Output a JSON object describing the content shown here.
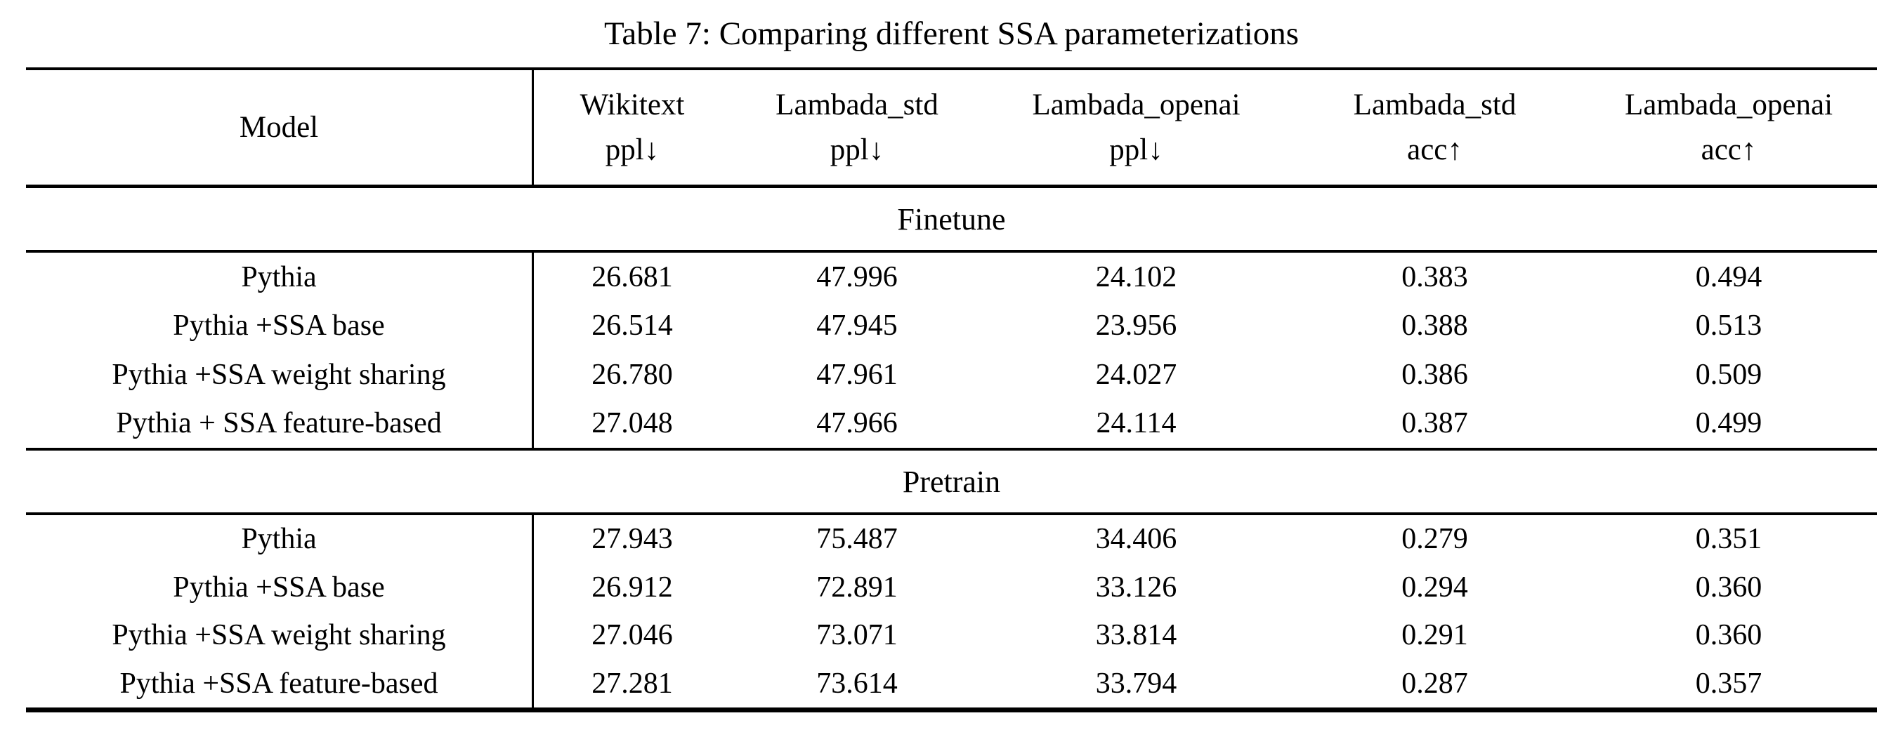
{
  "caption": "Table 7: Comparing different SSA parameterizations",
  "header": {
    "model": "Model",
    "columns": [
      {
        "line1": "Wikitext",
        "line2": "ppl↓"
      },
      {
        "line1": "Lambada_std",
        "line2": "ppl↓"
      },
      {
        "line1": "Lambada_openai",
        "line2": "ppl↓"
      },
      {
        "line1": "Lambada_std",
        "line2": "acc↑"
      },
      {
        "line1": "Lambada_openai",
        "line2": "acc↑"
      }
    ]
  },
  "sections": [
    {
      "label": "Finetune",
      "rows": [
        {
          "model": "Pythia",
          "values": [
            "26.681",
            "47.996",
            "24.102",
            "0.383",
            "0.494"
          ]
        },
        {
          "model": "Pythia +SSA base",
          "values": [
            "26.514",
            "47.945",
            "23.956",
            "0.388",
            "0.513"
          ]
        },
        {
          "model": "Pythia +SSA weight sharing",
          "values": [
            "26.780",
            "47.961",
            "24.027",
            "0.386",
            "0.509"
          ]
        },
        {
          "model": "Pythia + SSA feature-based",
          "values": [
            "27.048",
            "47.966",
            "24.114",
            "0.387",
            "0.499"
          ]
        }
      ]
    },
    {
      "label": "Pretrain",
      "rows": [
        {
          "model": "Pythia",
          "values": [
            "27.943",
            "75.487",
            "34.406",
            "0.279",
            "0.351"
          ]
        },
        {
          "model": "Pythia +SSA base",
          "values": [
            "26.912",
            "72.891",
            "33.126",
            "0.294",
            "0.360"
          ]
        },
        {
          "model": "Pythia +SSA weight sharing",
          "values": [
            "27.046",
            "73.071",
            "33.814",
            "0.291",
            "0.360"
          ]
        },
        {
          "model": "Pythia +SSA feature-based",
          "values": [
            "27.281",
            "73.614",
            "33.794",
            "0.287",
            "0.357"
          ]
        }
      ]
    }
  ]
}
